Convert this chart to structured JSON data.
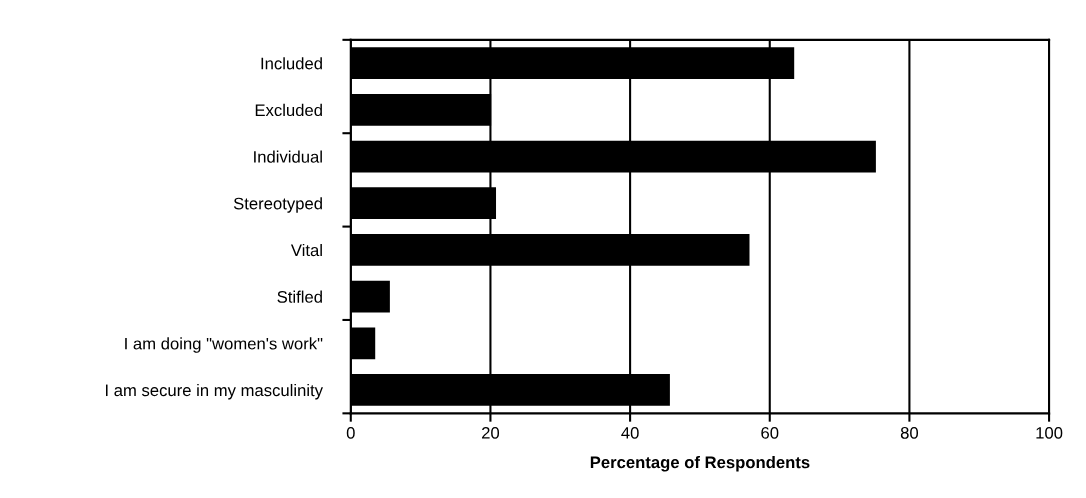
{
  "chart_data": {
    "type": "bar",
    "orientation": "horizontal",
    "xlabel": "Percentage of Respondents",
    "categories": [
      "Included",
      "Excluded",
      "Individual",
      "Stereotyped",
      "Vital",
      "Stifled",
      "I am doing \"women's work\"",
      "I am secure in my masculinity"
    ],
    "values": [
      63.5,
      20.1,
      75.2,
      20.8,
      57.1,
      5.6,
      3.5,
      45.7
    ],
    "color": "#000000",
    "xlim": [
      0,
      100
    ],
    "xticks": [
      0,
      20,
      40,
      60,
      80,
      100
    ],
    "grid": "x"
  }
}
